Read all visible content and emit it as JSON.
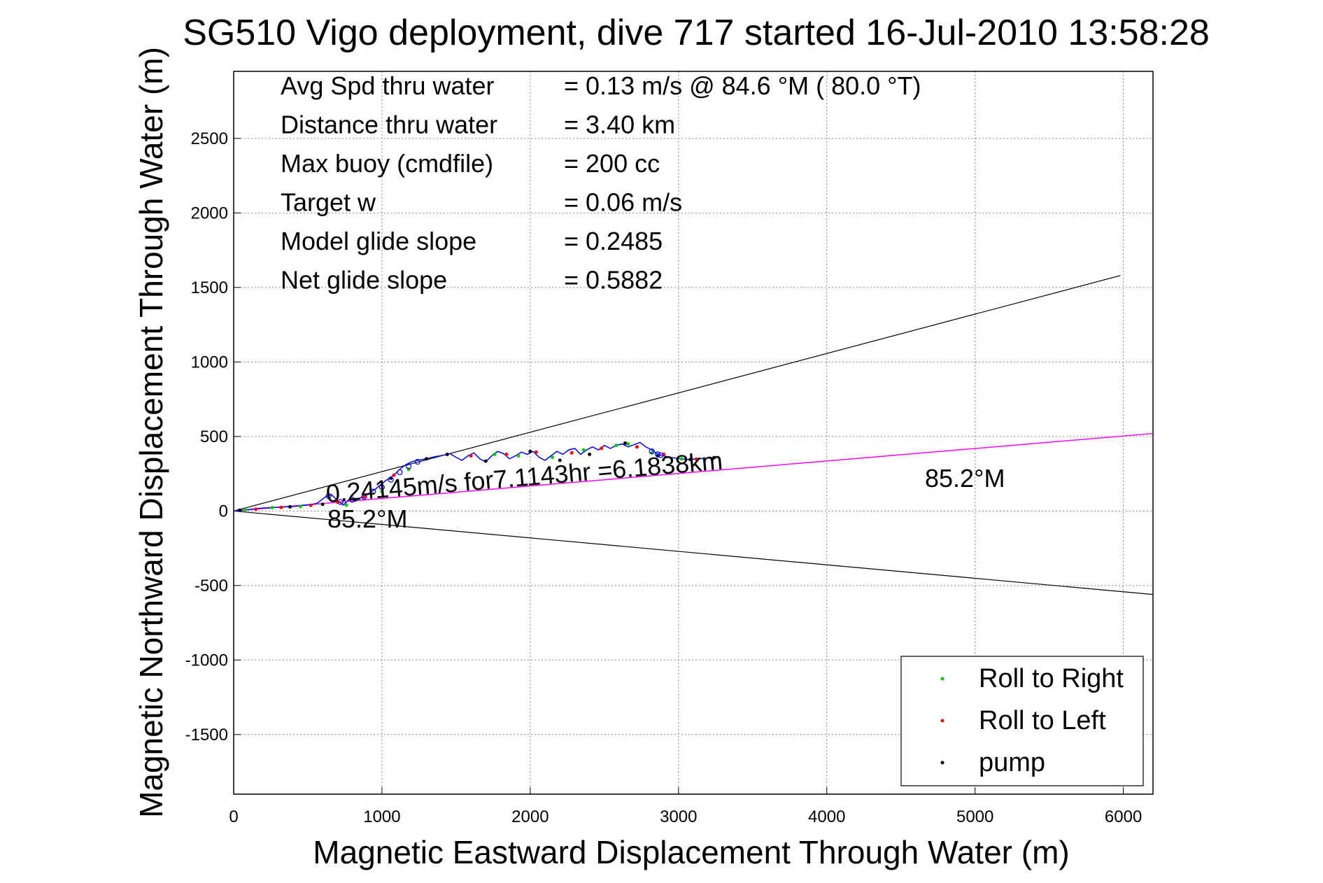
{
  "chart_data": {
    "type": "line",
    "title": "SG510 Vigo deployment, dive 717 started 16-Jul-2010 13:58:28",
    "xlabel": "Magnetic Eastward Displacement Through Water (m)",
    "ylabel": "Magnetic Northward Displacement Through Water (m)",
    "xlim": [
      0,
      6200
    ],
    "ylim": [
      -1900,
      2950
    ],
    "xticks": [
      0,
      1000,
      2000,
      3000,
      4000,
      5000,
      6000
    ],
    "xtick_labels": [
      "0",
      "1000",
      "2000",
      "3000",
      "4000",
      "5000",
      "6000"
    ],
    "yticks": [
      -1500,
      -1000,
      -500,
      0,
      500,
      1000,
      1500,
      2000,
      2500
    ],
    "ytick_labels": [
      "-1500",
      "-1000",
      "-500",
      "0",
      "500",
      "1000",
      "1500",
      "2000",
      "2500"
    ],
    "grid": true,
    "legend_position": "bottom-right",
    "info_lines": [
      {
        "label": "Avg Spd thru water",
        "value": "=  0.13 m/s @  84.6 °M ( 80.0 °T)"
      },
      {
        "label": "Distance thru water",
        "value": "=  3.40 km"
      },
      {
        "label": "Max buoy (cmdfile)",
        "value": "= 200 cc"
      },
      {
        "label": "Target w",
        "value": "= 0.06 m/s"
      },
      {
        "label": "Model glide slope",
        "value": "= 0.2485"
      },
      {
        "label": "Net glide slope",
        "value": "= 0.5882"
      }
    ],
    "annotations": {
      "velocity_label": "0.24145m/s for7.1143hr =6.1838km",
      "heading_label_near": "85.2°M",
      "heading_label_far": "85.2°M"
    },
    "envelope_lines": [
      {
        "x": [
          0,
          5980
        ],
        "y": [
          0,
          1580
        ]
      },
      {
        "x": [
          0,
          6200
        ],
        "y": [
          0,
          -560
        ]
      }
    ],
    "heading_line": {
      "x": [
        0,
        6200
      ],
      "y": [
        0,
        520
      ]
    },
    "track": {
      "x": [
        0,
        100,
        200,
        300,
        400,
        500,
        560,
        620,
        660,
        700,
        740,
        780,
        820,
        860,
        900,
        960,
        1020,
        1080,
        1120,
        1160,
        1200,
        1240,
        1300,
        1360,
        1420,
        1460,
        1500,
        1540,
        1580,
        1620,
        1660,
        1700,
        1740,
        1780,
        1820,
        1860,
        1900,
        1940,
        1980,
        2020,
        2060,
        2100,
        2140,
        2180,
        2220,
        2260,
        2300,
        2340,
        2380,
        2420,
        2460,
        2500,
        2540,
        2580,
        2620,
        2660,
        2700,
        2740,
        2780,
        2820,
        2860,
        2900,
        2940,
        2980,
        3020,
        3060,
        3100,
        3140,
        3200,
        3260
      ],
      "y": [
        0,
        10,
        20,
        25,
        30,
        40,
        50,
        95,
        110,
        70,
        40,
        80,
        70,
        90,
        110,
        150,
        200,
        240,
        280,
        310,
        330,
        340,
        350,
        365,
        375,
        385,
        360,
        340,
        370,
        390,
        350,
        330,
        370,
        400,
        385,
        350,
        370,
        395,
        380,
        400,
        360,
        340,
        370,
        400,
        380,
        410,
        420,
        380,
        410,
        430,
        410,
        440,
        420,
        440,
        450,
        430,
        445,
        460,
        430,
        410,
        380,
        370,
        360,
        355,
        350,
        345,
        348,
        350,
        355,
        360
      ]
    },
    "series": [
      {
        "name": "Roll to Right",
        "color": "#00cc00",
        "x": [
          80,
          260,
          450,
          760,
          1000,
          1180,
          1760,
          1920,
          2150,
          2360,
          2580,
          2660,
          2820,
          3020
        ],
        "y": [
          10,
          22,
          30,
          40,
          130,
          280,
          380,
          370,
          360,
          410,
          440,
          450,
          390,
          350
        ]
      },
      {
        "name": "Roll to Left",
        "color": "#ff0000",
        "x": [
          150,
          320,
          520,
          700,
          880,
          1080,
          1600,
          1840,
          2040,
          2280,
          2480,
          2720,
          2900,
          3120
        ],
        "y": [
          12,
          24,
          38,
          60,
          95,
          240,
          370,
          380,
          395,
          390,
          420,
          430,
          380,
          348
        ]
      },
      {
        "name": "pump",
        "color": "#000000",
        "x": [
          40,
          380,
          600,
          820,
          1060,
          1300,
          1440,
          1700,
          2000,
          2200,
          2400,
          2640,
          2860,
          3080,
          3240
        ],
        "y": [
          5,
          28,
          45,
          75,
          220,
          350,
          380,
          335,
          400,
          340,
          380,
          455,
          370,
          346,
          358
        ]
      },
      {
        "name": "",
        "color": "#0000ff",
        "marker": "circle",
        "x": [
          640,
          720,
          800,
          880,
          940,
          1000,
          1060,
          1120,
          1180,
          1240,
          2820,
          2860,
          2880
        ],
        "y": [
          100,
          60,
          75,
          95,
          130,
          160,
          210,
          260,
          300,
          330,
          400,
          380,
          375
        ]
      }
    ]
  }
}
